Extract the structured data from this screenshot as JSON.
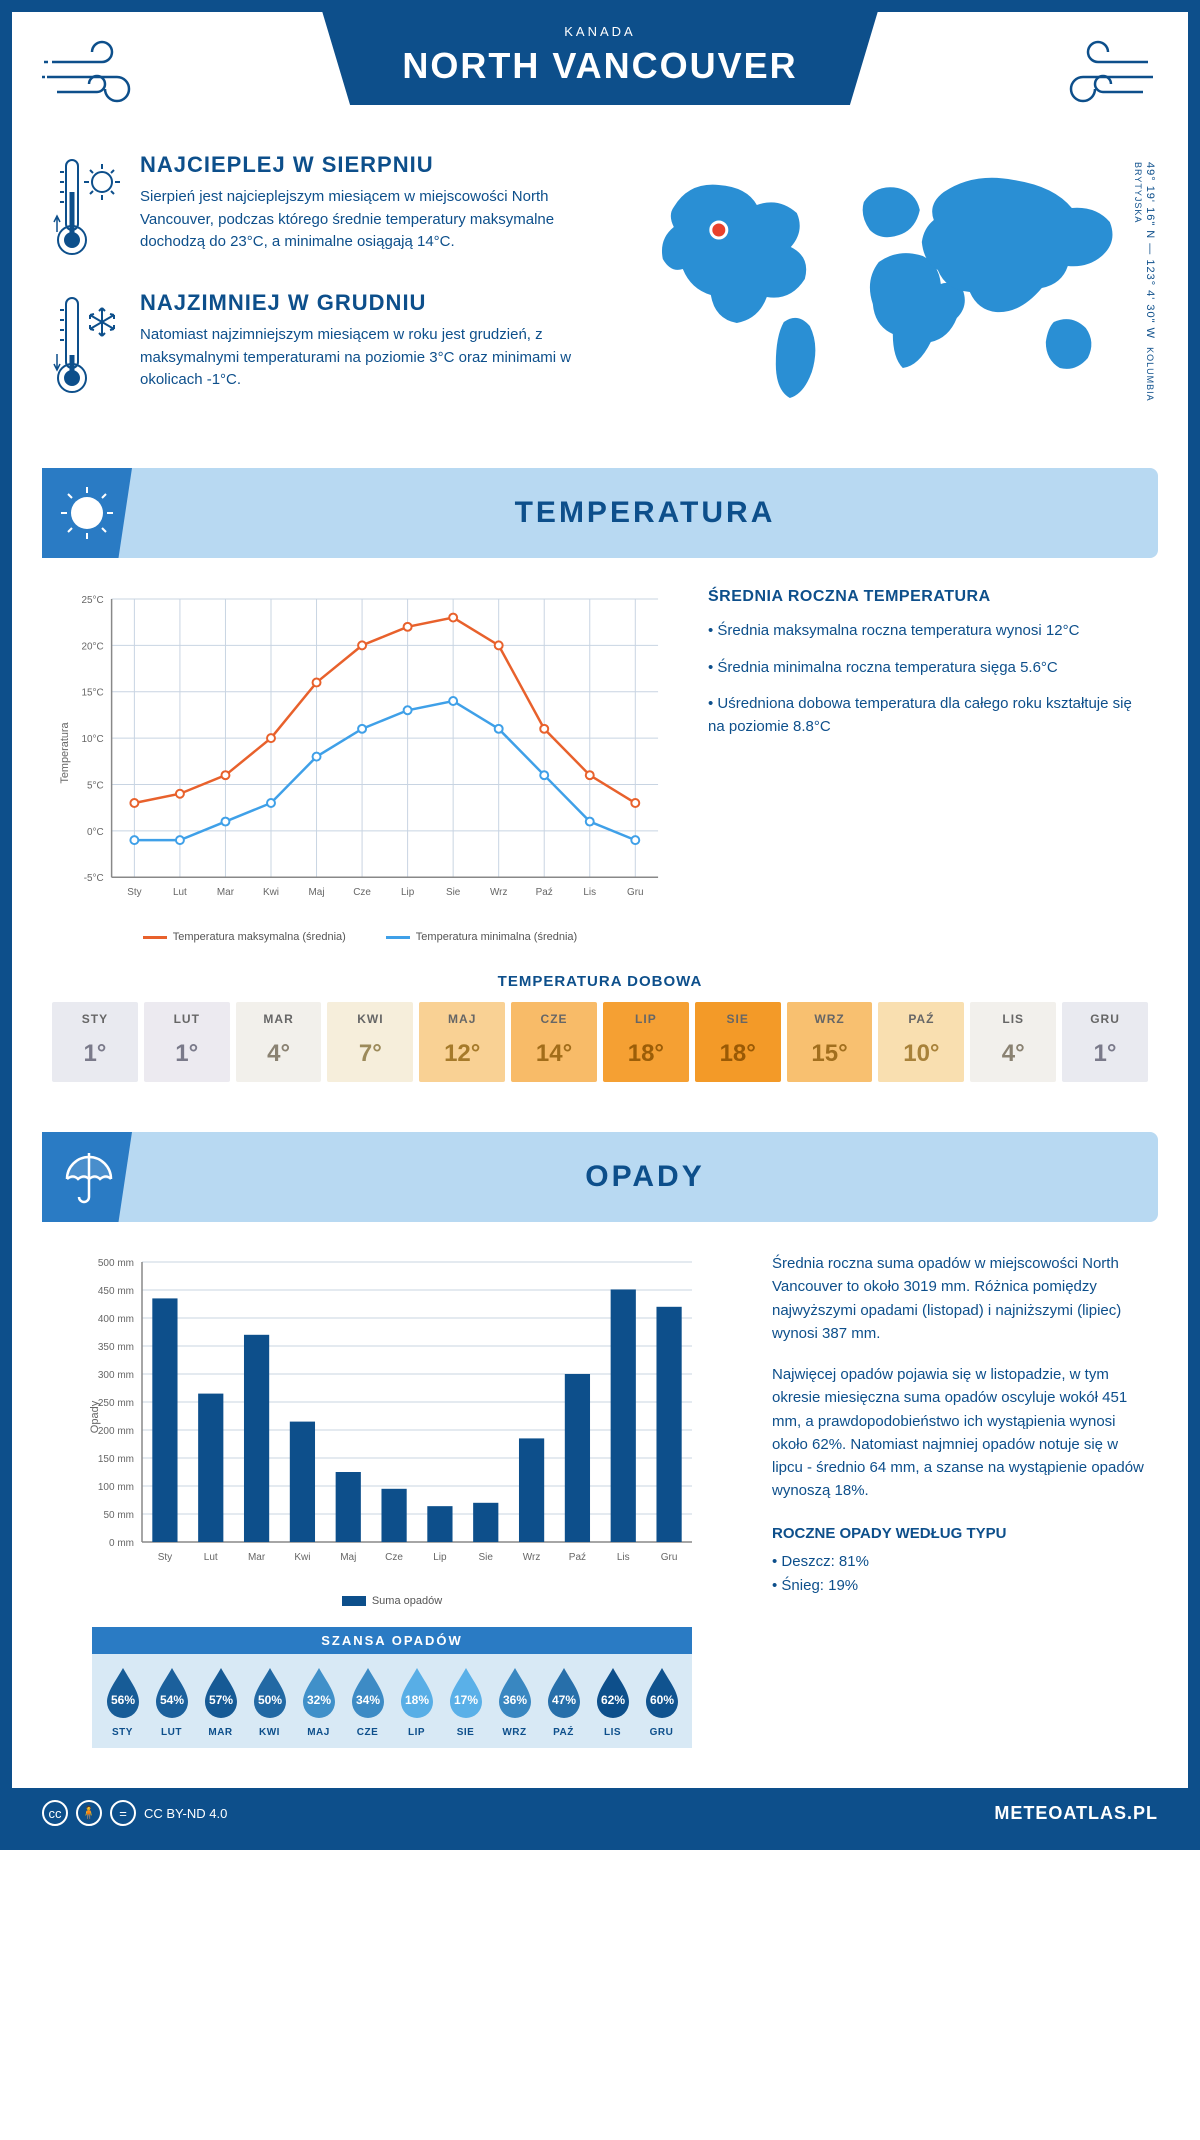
{
  "header": {
    "title": "NORTH VANCOUVER",
    "subtitle": "KANADA"
  },
  "coords": "49° 19' 16\" N — 123° 4' 30\" W",
  "region": "KOLUMBIA BRYTYJSKA",
  "intro": {
    "warm": {
      "title": "NAJCIEPLEJ W SIERPNIU",
      "text": "Sierpień jest najcieplejszym miesiącem w miejscowości North Vancouver, podczas którego średnie temperatury maksymalne dochodzą do 23°C, a minimalne osiągają 14°C."
    },
    "cold": {
      "title": "NAJZIMNIEJ W GRUDNIU",
      "text": "Natomiast najzimniejszym miesiącem w roku jest grudzień, z maksymalnymi temperaturami na poziomie 3°C oraz minimami w okolicach -1°C."
    }
  },
  "sections": {
    "temperatura": "TEMPERATURA",
    "opady": "OPADY"
  },
  "months": [
    "Sty",
    "Lut",
    "Mar",
    "Kwi",
    "Maj",
    "Cze",
    "Lip",
    "Sie",
    "Wrz",
    "Paź",
    "Lis",
    "Gru"
  ],
  "months_upper": [
    "STY",
    "LUT",
    "MAR",
    "KWI",
    "MAJ",
    "CZE",
    "LIP",
    "SIE",
    "WRZ",
    "PAŹ",
    "LIS",
    "GRU"
  ],
  "temp_chart": {
    "ylabel": "Temperatura",
    "ylim": [
      -5,
      25
    ],
    "ytick_step": 5,
    "yticks": [
      "-5°C",
      "0°C",
      "5°C",
      "10°C",
      "15°C",
      "20°C",
      "25°C"
    ],
    "max_series": [
      3,
      4,
      6,
      10,
      16,
      20,
      22,
      23,
      20,
      11,
      6,
      3
    ],
    "min_series": [
      -1,
      -1,
      1,
      3,
      8,
      11,
      13,
      14,
      11,
      6,
      1,
      -1
    ],
    "max_color": "#e8612c",
    "min_color": "#3fa0e8",
    "grid_color": "#c8d4e2",
    "legend_max": "Temperatura maksymalna (średnia)",
    "legend_min": "Temperatura minimalna (średnia)"
  },
  "temp_aside": {
    "title": "ŚREDNIA ROCZNA TEMPERATURA",
    "bullets": [
      "• Średnia maksymalna roczna temperatura wynosi 12°C",
      "• Średnia minimalna roczna temperatura sięga 5.6°C",
      "• Uśredniona dobowa temperatura dla całego roku kształtuje się na poziomie 8.8°C"
    ]
  },
  "dobowa": {
    "title": "TEMPERATURA DOBOWA",
    "values": [
      "1°",
      "1°",
      "4°",
      "7°",
      "12°",
      "14°",
      "18°",
      "18°",
      "15°",
      "10°",
      "4°",
      "1°"
    ],
    "bg_colors": [
      "#e9eaf0",
      "#eceaf0",
      "#f2f0eb",
      "#f6eedb",
      "#f9d194",
      "#f8bb68",
      "#f5a033",
      "#f39a28",
      "#f8c070",
      "#f9dfb0",
      "#f2f0ec",
      "#e9eaf0"
    ],
    "text_colors": [
      "#7a7a8a",
      "#7a7a8a",
      "#8a8272",
      "#9c8a5a",
      "#a67a2a",
      "#a26d1a",
      "#9c5e08",
      "#9a5a05",
      "#a26f1e",
      "#a8823a",
      "#8a8272",
      "#7a7a8a"
    ]
  },
  "opady_chart": {
    "ylabel": "Opady",
    "ylim": [
      0,
      500
    ],
    "ytick_step": 50,
    "values": [
      435,
      265,
      370,
      215,
      125,
      95,
      64,
      70,
      185,
      300,
      451,
      420
    ],
    "bar_color": "#0d4f8b",
    "grid_color": "#c8d4e2",
    "legend": "Suma opadów"
  },
  "opady_aside": {
    "p1": "Średnia roczna suma opadów w miejscowości North Vancouver to około 3019 mm. Różnica pomiędzy najwyższymi opadami (listopad) i najniższymi (lipiec) wynosi 387 mm.",
    "p2": "Najwięcej opadów pojawia się w listopadzie, w tym okresie miesięczna suma opadów oscyluje wokół 451 mm, a prawdopodobieństwo ich wystąpienia wynosi około 62%. Natomiast najmniej opadów notuje się w lipcu - średnio 64 mm, a szanse na wystąpienie opadów wynoszą 18%.",
    "title": "ROCZNE OPADY WEDŁUG TYPU",
    "bullets": [
      "• Deszcz: 81%",
      "• Śnieg: 19%"
    ]
  },
  "szansa": {
    "title": "SZANSA OPADÓW",
    "values": [
      56,
      54,
      57,
      50,
      32,
      34,
      18,
      17,
      36,
      47,
      62,
      60
    ]
  },
  "footer": {
    "license": "CC BY-ND 4.0",
    "brand": "METEOATLAS.PL"
  },
  "map": {
    "marker_color": "#e8412c",
    "land_color": "#2a8fd4"
  }
}
